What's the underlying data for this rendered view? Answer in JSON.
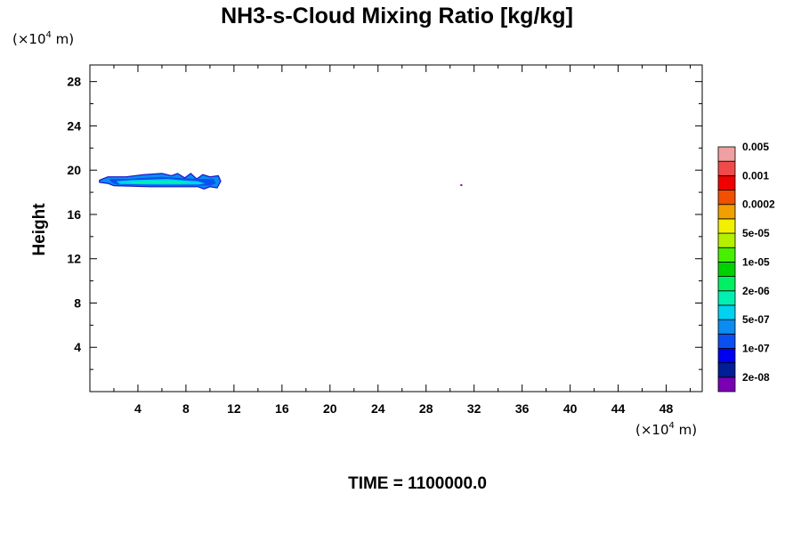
{
  "chart_data": {
    "type": "heatmap",
    "title": "NH3-s-Cloud Mixing Ratio [kg/kg]",
    "ylabel": "Height",
    "xlabel": "",
    "x_unit_prefix": "(×10",
    "x_unit_exp": "4",
    "x_unit_suffix": " m)",
    "y_unit_prefix": "(×10",
    "y_unit_exp": "4",
    "y_unit_suffix": " m)",
    "xlim": [
      0,
      51
    ],
    "ylim": [
      0,
      29.5
    ],
    "xticks": [
      4,
      8,
      12,
      16,
      20,
      24,
      28,
      32,
      36,
      40,
      44,
      48
    ],
    "yticks": [
      4,
      8,
      12,
      16,
      20,
      24,
      28
    ],
    "time_label": "TIME = 1100000.0",
    "legend": {
      "placement": "right",
      "colors": [
        "#7a00b4",
        "#001e96",
        "#0000f0",
        "#0a50f0",
        "#0a8cf0",
        "#00d2f0",
        "#00f0b4",
        "#00f064",
        "#00d200",
        "#46f000",
        "#b4f000",
        "#f0f000",
        "#f0a000",
        "#f05000",
        "#f00000",
        "#f04b4b",
        "#f0a0a0"
      ],
      "labels": [
        "2e-08",
        "1e-07",
        "5e-07",
        "2e-06",
        "1e-05",
        "5e-05",
        "0.0002",
        "0.001",
        "0.005"
      ]
    },
    "regions": [
      {
        "name": "main-cloud-band",
        "level": 1,
        "color": "#0a8cf0",
        "polygon": [
          [
            0.8,
            19.1
          ],
          [
            1.5,
            19.4
          ],
          [
            3.0,
            19.4
          ],
          [
            4.5,
            19.6
          ],
          [
            6.0,
            19.7
          ],
          [
            6.8,
            19.5
          ],
          [
            7.3,
            19.7
          ],
          [
            7.9,
            19.3
          ],
          [
            8.4,
            19.7
          ],
          [
            8.9,
            19.2
          ],
          [
            9.4,
            19.6
          ],
          [
            10.0,
            19.4
          ],
          [
            10.7,
            19.5
          ],
          [
            10.9,
            19.0
          ],
          [
            10.6,
            18.4
          ],
          [
            10.0,
            18.5
          ],
          [
            9.5,
            18.3
          ],
          [
            9.0,
            18.5
          ],
          [
            5.0,
            18.5
          ],
          [
            2.0,
            18.6
          ],
          [
            1.5,
            18.8
          ],
          [
            0.8,
            18.9
          ]
        ]
      },
      {
        "name": "main-cloud-edge",
        "level": 2,
        "color": "#0a50f0",
        "polygon": [
          [
            1.6,
            19.2
          ],
          [
            3.0,
            19.2
          ],
          [
            4.5,
            19.3
          ],
          [
            6.0,
            19.4
          ],
          [
            7.5,
            19.3
          ],
          [
            9.0,
            19.2
          ],
          [
            10.3,
            19.2
          ],
          [
            10.5,
            18.8
          ],
          [
            10.0,
            18.6
          ],
          [
            5.0,
            18.6
          ],
          [
            2.2,
            18.7
          ],
          [
            1.8,
            18.9
          ]
        ]
      },
      {
        "name": "main-cloud-core",
        "level": 3,
        "color": "#00d2f0",
        "polygon": [
          [
            2.2,
            19.0
          ],
          [
            3.5,
            19.1
          ],
          [
            5.0,
            19.15
          ],
          [
            6.5,
            19.2
          ],
          [
            7.5,
            19.1
          ],
          [
            9.0,
            19.0
          ],
          [
            9.6,
            18.8
          ],
          [
            9.0,
            18.7
          ],
          [
            5.0,
            18.7
          ],
          [
            2.5,
            18.75
          ]
        ]
      },
      {
        "name": "main-cloud-inner",
        "level": 4,
        "color": "#00f0b4",
        "polygon": [
          [
            3.0,
            18.95
          ],
          [
            5.0,
            19.05
          ],
          [
            7.0,
            19.05
          ],
          [
            8.5,
            18.9
          ],
          [
            7.5,
            18.8
          ],
          [
            4.0,
            18.8
          ]
        ]
      },
      {
        "name": "isolated-cloud-spot",
        "level": 0,
        "color": "#7a00b4",
        "polygon": [
          [
            30.8,
            18.65
          ],
          [
            30.95,
            18.75
          ],
          [
            31.05,
            18.65
          ],
          [
            30.95,
            18.55
          ]
        ]
      }
    ]
  }
}
